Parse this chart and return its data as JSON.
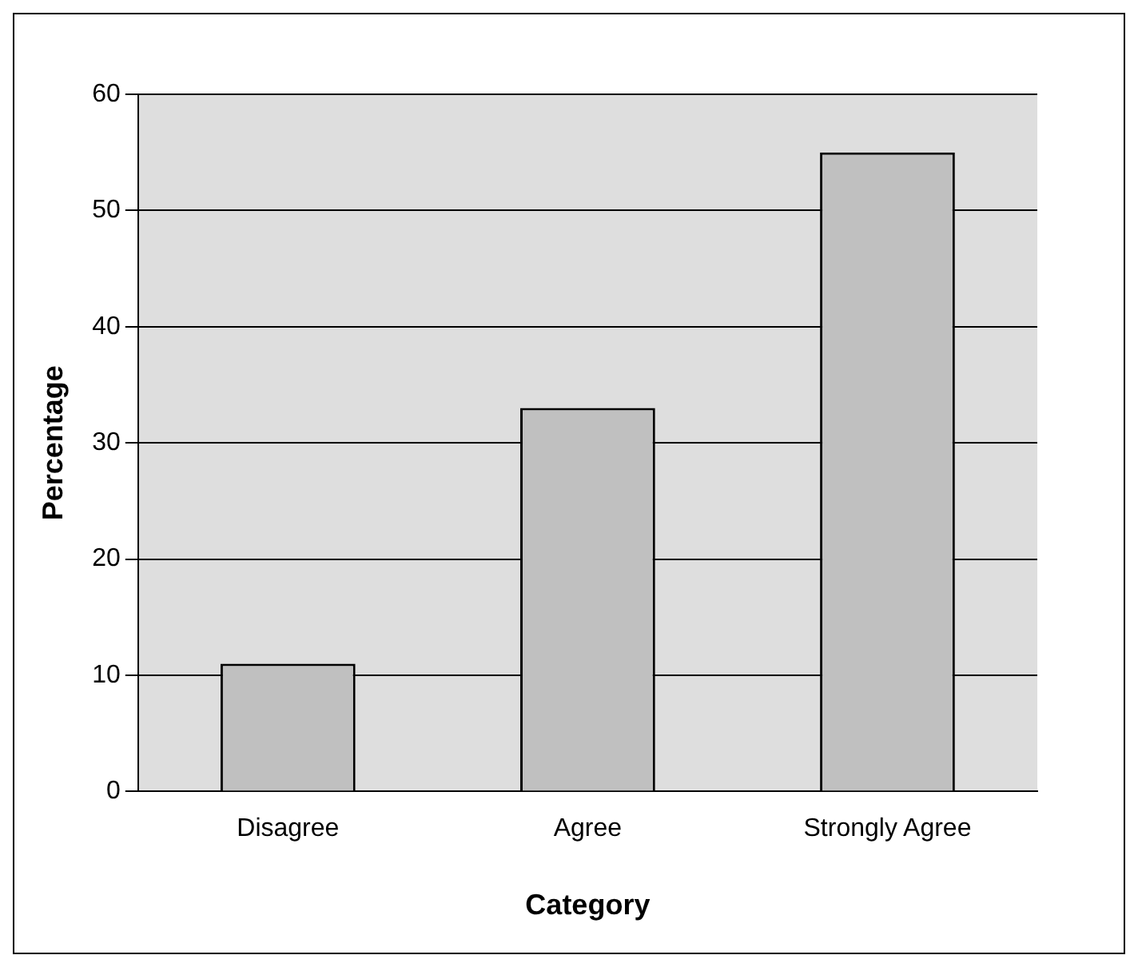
{
  "chart_data": {
    "type": "bar",
    "xlabel": "Category",
    "ylabel": "Percentage",
    "categories": [
      "Disagree",
      "Agree",
      "Strongly Agree"
    ],
    "values": [
      11,
      33,
      55
    ],
    "color": "#c0c0c0",
    "ylim": [
      0,
      60
    ],
    "yticks": [
      0,
      10,
      20,
      30,
      40,
      50,
      60
    ],
    "grid": "y"
  }
}
